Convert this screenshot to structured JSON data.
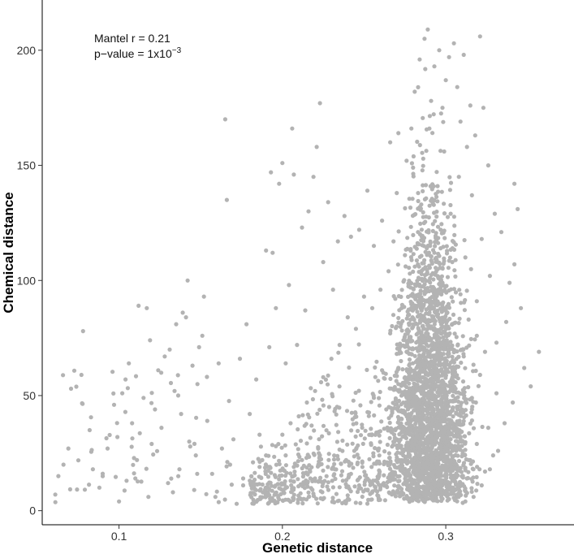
{
  "chart_data": {
    "type": "scatter",
    "xlabel": "Genetic distance",
    "ylabel": "Chemical distance",
    "xlim": [
      0.053,
      0.375
    ],
    "ylim": [
      -4,
      219
    ],
    "x_ticks": [
      0.1,
      0.2,
      0.3
    ],
    "x_tick_labels": [
      "0.1",
      "0.2",
      "0.3"
    ],
    "y_ticks": [
      0,
      50,
      100,
      150,
      200
    ],
    "y_tick_labels": [
      "0",
      "50",
      "100",
      "150",
      "200"
    ],
    "grid": false,
    "annotation": {
      "mantel": "Mantel r = 0.21",
      "pvalue_prefix": "p−value = 1x10",
      "pvalue_exponent": "−3"
    },
    "point_color": "#b3b3b3",
    "points": [
      [
        0.061,
        7
      ],
      [
        0.066,
        20
      ],
      [
        0.069,
        27
      ],
      [
        0.077,
        59
      ],
      [
        0.078,
        78
      ],
      [
        0.082,
        35
      ],
      [
        0.084,
        18
      ],
      [
        0.088,
        10
      ],
      [
        0.09,
        15
      ],
      [
        0.093,
        27
      ],
      [
        0.097,
        46
      ],
      [
        0.099,
        32
      ],
      [
        0.1,
        4
      ],
      [
        0.102,
        51
      ],
      [
        0.104,
        57
      ],
      [
        0.106,
        64
      ],
      [
        0.108,
        38
      ],
      [
        0.11,
        14
      ],
      [
        0.111,
        22
      ],
      [
        0.112,
        89
      ],
      [
        0.115,
        49
      ],
      [
        0.117,
        88
      ],
      [
        0.118,
        6
      ],
      [
        0.119,
        74
      ],
      [
        0.12,
        29
      ],
      [
        0.122,
        44
      ],
      [
        0.124,
        61
      ],
      [
        0.126,
        36
      ],
      [
        0.128,
        67
      ],
      [
        0.13,
        12
      ],
      [
        0.131,
        70
      ],
      [
        0.133,
        8
      ],
      [
        0.134,
        52
      ],
      [
        0.135,
        81
      ],
      [
        0.137,
        18
      ],
      [
        0.138,
        42
      ],
      [
        0.139,
        86
      ],
      [
        0.141,
        84
      ],
      [
        0.142,
        100
      ],
      [
        0.143,
        30
      ],
      [
        0.145,
        63
      ],
      [
        0.146,
        9
      ],
      [
        0.147,
        24
      ],
      [
        0.148,
        55
      ],
      [
        0.149,
        71
      ],
      [
        0.151,
        76
      ],
      [
        0.152,
        93
      ],
      [
        0.154,
        39
      ],
      [
        0.157,
        16
      ],
      [
        0.159,
        6
      ],
      [
        0.161,
        64
      ],
      [
        0.163,
        27
      ],
      [
        0.165,
        170
      ],
      [
        0.166,
        135
      ],
      [
        0.168,
        20
      ],
      [
        0.17,
        31
      ],
      [
        0.172,
        3
      ],
      [
        0.174,
        66
      ],
      [
        0.176,
        14
      ],
      [
        0.178,
        81
      ],
      [
        0.18,
        42
      ],
      [
        0.182,
        21
      ],
      [
        0.184,
        57
      ],
      [
        0.186,
        33
      ],
      [
        0.188,
        8
      ],
      [
        0.19,
        113
      ],
      [
        0.192,
        71
      ],
      [
        0.193,
        147
      ],
      [
        0.194,
        112
      ],
      [
        0.196,
        88
      ],
      [
        0.198,
        142
      ],
      [
        0.2,
        151
      ],
      [
        0.202,
        64
      ],
      [
        0.204,
        98
      ],
      [
        0.206,
        166
      ],
      [
        0.207,
        146
      ],
      [
        0.209,
        72
      ],
      [
        0.212,
        123
      ],
      [
        0.214,
        87
      ],
      [
        0.216,
        130
      ],
      [
        0.219,
        145
      ],
      [
        0.221,
        158
      ],
      [
        0.223,
        177
      ],
      [
        0.225,
        108
      ],
      [
        0.228,
        134
      ],
      [
        0.231,
        96
      ],
      [
        0.234,
        117
      ],
      [
        0.238,
        128
      ],
      [
        0.242,
        119
      ],
      [
        0.247,
        122
      ],
      [
        0.252,
        139
      ],
      [
        0.256,
        115
      ],
      [
        0.261,
        126
      ],
      [
        0.266,
        160
      ],
      [
        0.271,
        164
      ],
      [
        0.276,
        152
      ],
      [
        0.281,
        182
      ],
      [
        0.284,
        196
      ],
      [
        0.287,
        205
      ],
      [
        0.289,
        209
      ],
      [
        0.291,
        178
      ],
      [
        0.293,
        193
      ],
      [
        0.296,
        200
      ],
      [
        0.298,
        175
      ],
      [
        0.3,
        187
      ],
      [
        0.302,
        197
      ],
      [
        0.305,
        203
      ],
      [
        0.307,
        184
      ],
      [
        0.309,
        169
      ],
      [
        0.311,
        198
      ],
      [
        0.313,
        158
      ],
      [
        0.315,
        176
      ],
      [
        0.318,
        163
      ],
      [
        0.321,
        206
      ],
      [
        0.323,
        175
      ],
      [
        0.326,
        150
      ],
      [
        0.33,
        129
      ],
      [
        0.334,
        121
      ],
      [
        0.339,
        99
      ],
      [
        0.342,
        142
      ],
      [
        0.344,
        131
      ],
      [
        0.346,
        88
      ],
      [
        0.348,
        62
      ],
      [
        0.352,
        54
      ],
      [
        0.357,
        69
      ],
      [
        0.342,
        107
      ],
      [
        0.337,
        82
      ],
      [
        0.331,
        73
      ],
      [
        0.327,
        102
      ],
      [
        0.322,
        118
      ],
      [
        0.319,
        91
      ],
      [
        0.316,
        137
      ],
      [
        0.312,
        110
      ],
      [
        0.308,
        145
      ],
      [
        0.303,
        129
      ],
      [
        0.299,
        156
      ],
      [
        0.295,
        141
      ],
      [
        0.29,
        166
      ],
      [
        0.285,
        133
      ],
      [
        0.28,
        149
      ],
      [
        0.275,
        111
      ],
      [
        0.27,
        138
      ],
      [
        0.265,
        104
      ],
      [
        0.26,
        96
      ],
      [
        0.255,
        88
      ],
      [
        0.25,
        93
      ],
      [
        0.245,
        79
      ],
      [
        0.24,
        84
      ],
      [
        0.235,
        72
      ],
      [
        0.23,
        66
      ],
      [
        0.225,
        58
      ],
      [
        0.22,
        52
      ],
      [
        0.215,
        47
      ],
      [
        0.21,
        41
      ],
      [
        0.205,
        38
      ],
      [
        0.2,
        33
      ],
      [
        0.196,
        28
      ],
      [
        0.19,
        24
      ],
      [
        0.186,
        19
      ],
      [
        0.181,
        15
      ],
      [
        0.176,
        11
      ],
      [
        0.341,
        47
      ],
      [
        0.336,
        38
      ],
      [
        0.332,
        26
      ],
      [
        0.327,
        18
      ],
      [
        0.322,
        11
      ],
      [
        0.317,
        6
      ],
      [
        0.312,
        4
      ],
      [
        0.307,
        7
      ],
      [
        0.302,
        5
      ],
      [
        0.297,
        9
      ],
      [
        0.292,
        6
      ],
      [
        0.287,
        4
      ],
      [
        0.282,
        8
      ],
      [
        0.277,
        5
      ],
      [
        0.272,
        10
      ],
      [
        0.267,
        7
      ],
      [
        0.262,
        12
      ],
      [
        0.257,
        9
      ],
      [
        0.252,
        14
      ],
      [
        0.247,
        11
      ],
      [
        0.242,
        16
      ],
      [
        0.237,
        13
      ],
      [
        0.232,
        18
      ],
      [
        0.227,
        15
      ],
      [
        0.222,
        20
      ],
      [
        0.217,
        17
      ],
      [
        0.212,
        22
      ],
      [
        0.207,
        19
      ],
      [
        0.202,
        24
      ],
      [
        0.296,
        64
      ],
      [
        0.291,
        72
      ],
      [
        0.286,
        58
      ],
      [
        0.281,
        81
      ],
      [
        0.276,
        69
      ],
      [
        0.271,
        55
      ],
      [
        0.266,
        77
      ],
      [
        0.261,
        61
      ],
      [
        0.256,
        49
      ],
      [
        0.301,
        86
      ],
      [
        0.306,
        53
      ],
      [
        0.311,
        67
      ],
      [
        0.316,
        44
      ],
      [
        0.321,
        59
      ],
      [
        0.326,
        36
      ],
      [
        0.331,
        51
      ],
      [
        0.298,
        99
      ],
      [
        0.293,
        112
      ],
      [
        0.288,
        95
      ],
      [
        0.283,
        121
      ],
      [
        0.278,
        103
      ],
      [
        0.273,
        88
      ],
      [
        0.268,
        117
      ],
      [
        0.304,
        108
      ],
      [
        0.309,
        94
      ],
      [
        0.314,
        83
      ],
      [
        0.319,
        76
      ],
      [
        0.324,
        69
      ],
      [
        0.294,
        35
      ],
      [
        0.289,
        42
      ],
      [
        0.284,
        29
      ],
      [
        0.279,
        37
      ],
      [
        0.274,
        24
      ],
      [
        0.269,
        31
      ],
      [
        0.264,
        21
      ],
      [
        0.259,
        27
      ],
      [
        0.254,
        33
      ],
      [
        0.249,
        19
      ],
      [
        0.244,
        26
      ],
      [
        0.239,
        22
      ],
      [
        0.299,
        31
      ],
      [
        0.304,
        27
      ],
      [
        0.309,
        34
      ],
      [
        0.314,
        22
      ],
      [
        0.319,
        29
      ],
      [
        0.324,
        17
      ],
      [
        0.329,
        24
      ]
    ]
  }
}
